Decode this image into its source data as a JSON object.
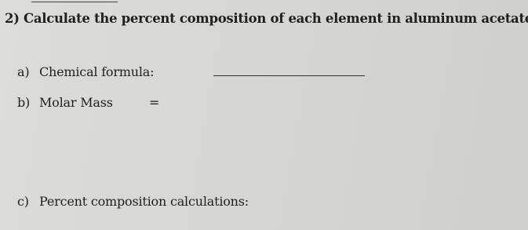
{
  "question": {
    "number": "2)",
    "text": "Calculate the percent composition of each element in aluminum acetate."
  },
  "items": [
    {
      "label": "a)",
      "text": "Chemical formula:"
    },
    {
      "label": "b)",
      "text": "Molar Mass",
      "suffix": "="
    },
    {
      "label": "c)",
      "text": "Percent composition calculations:"
    }
  ]
}
